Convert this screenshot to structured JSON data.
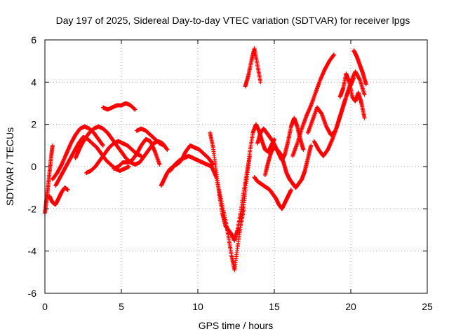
{
  "chart_data": {
    "type": "scatter",
    "title": "Day 197 of 2025, Sidereal Day-to-day VTEC variation (SDTVAR) for receiver lpgs",
    "xlabel": "GPS time / hours",
    "ylabel": "SDTVAR / TECUs",
    "xlim": [
      0,
      25
    ],
    "ylim": [
      -6,
      6
    ],
    "xticks": [
      "0",
      "5",
      "10",
      "15",
      "20",
      "25"
    ],
    "yticks": [
      "-6",
      "-4",
      "-2",
      "0",
      "2",
      "4",
      "6"
    ],
    "grid": true,
    "marker": "plus",
    "color": "#ff0000",
    "series": [
      {
        "x": [
          0.0,
          0.1,
          0.2,
          0.3,
          0.4,
          0.5
        ],
        "y": [
          -2.2,
          -1.6,
          -1.0,
          -0.3,
          0.4,
          1.0
        ]
      },
      {
        "x": [
          0.3,
          0.5,
          0.7,
          0.9,
          1.1,
          1.3,
          1.5
        ],
        "y": [
          -1.4,
          -1.7,
          -1.8,
          -1.5,
          -1.2,
          -1.0,
          -1.1
        ]
      },
      {
        "x": [
          0.5,
          0.8,
          1.1,
          1.4,
          1.7,
          2.0,
          2.3,
          2.6,
          2.9,
          3.2,
          3.5,
          3.8
        ],
        "y": [
          -0.6,
          -0.3,
          0.1,
          0.6,
          1.1,
          1.5,
          1.8,
          1.9,
          1.8,
          1.6,
          1.3,
          1.0
        ]
      },
      {
        "x": [
          0.7,
          1.0,
          1.3,
          1.6,
          1.9,
          2.2,
          2.5,
          2.8,
          3.1,
          3.4,
          3.7,
          4.0,
          4.3,
          4.6,
          4.9,
          5.2,
          5.5
        ],
        "y": [
          -0.9,
          -0.5,
          -0.1,
          0.3,
          0.7,
          1.1,
          1.4,
          1.3,
          1.1,
          0.9,
          0.6,
          0.3,
          0.1,
          -0.1,
          -0.2,
          -0.1,
          0.0
        ]
      },
      {
        "x": [
          2.0,
          2.3,
          2.6,
          2.9,
          3.2,
          3.5,
          3.8,
          4.1,
          4.4,
          4.7,
          5.0,
          5.3,
          5.6,
          5.9,
          6.2,
          6.5,
          6.8,
          7.1,
          7.4,
          7.7,
          8.0
        ],
        "y": [
          0.4,
          0.9,
          1.3,
          1.6,
          1.8,
          1.9,
          1.8,
          1.6,
          1.3,
          1.0,
          0.7,
          0.4,
          0.2,
          0.1,
          0.2,
          0.5,
          0.8,
          1.1,
          1.2,
          1.1,
          0.8
        ]
      },
      {
        "x": [
          2.7,
          3.0,
          3.3,
          3.6,
          3.9,
          4.2,
          4.5,
          4.8,
          5.1,
          5.4,
          5.7,
          6.0,
          6.3
        ],
        "y": [
          -0.3,
          -0.2,
          0.0,
          0.3,
          0.6,
          0.9,
          1.1,
          1.2,
          1.1,
          1.0,
          0.8,
          0.6,
          0.5
        ]
      },
      {
        "x": [
          3.8,
          4.1,
          4.4,
          4.7,
          5.0,
          5.3,
          5.6,
          5.9
        ],
        "y": [
          2.8,
          2.7,
          2.8,
          2.9,
          2.9,
          3.0,
          2.9,
          2.7
        ]
      },
      {
        "x": [
          4.5,
          4.8,
          5.1,
          5.4,
          5.7,
          6.0,
          6.3,
          6.6,
          6.9,
          7.2,
          7.5
        ],
        "y": [
          -0.1,
          0.0,
          0.2,
          0.2,
          0.3,
          0.6,
          1.0,
          1.3,
          1.2,
          0.7,
          0.1
        ]
      },
      {
        "x": [
          6.0,
          6.3,
          6.6,
          6.9,
          7.2,
          7.5,
          7.8
        ],
        "y": [
          1.7,
          1.8,
          1.7,
          1.5,
          1.3,
          1.1,
          1.0
        ]
      },
      {
        "x": [
          7.6,
          7.8,
          8.0,
          8.2,
          8.4,
          8.6,
          8.8,
          9.0,
          9.2,
          9.5,
          9.8,
          10.1,
          10.4,
          10.7,
          11.0
        ],
        "y": [
          -0.9,
          -0.6,
          -0.3,
          -0.1,
          0.0,
          0.1,
          0.2,
          0.4,
          0.7,
          1.0,
          0.9,
          0.8,
          0.6,
          0.4,
          0.1
        ]
      },
      {
        "x": [
          8.2,
          8.5,
          8.8,
          9.1,
          9.4,
          9.7,
          10.0,
          10.3,
          10.6,
          10.9,
          11.2,
          11.5,
          11.8,
          12.0,
          12.2,
          12.4,
          12.6,
          12.8,
          13.0
        ],
        "y": [
          -0.2,
          0.1,
          0.3,
          0.4,
          0.5,
          0.4,
          0.3,
          0.2,
          0.1,
          0.0,
          -0.5,
          -1.5,
          -2.5,
          -3.3,
          -4.2,
          -4.9,
          -3.8,
          -2.8,
          -2.0
        ]
      },
      {
        "x": [
          10.8,
          11.0,
          11.2,
          11.4,
          11.6,
          11.8,
          12.0,
          12.2,
          12.4,
          12.6,
          12.8,
          13.0,
          13.2,
          13.4
        ],
        "y": [
          1.6,
          0.9,
          -0.2,
          -1.3,
          -2.2,
          -2.8,
          -3.0,
          -3.2,
          -3.5,
          -3.0,
          -2.2,
          -1.2,
          -0.3,
          0.5
        ]
      },
      {
        "x": [
          12.8,
          13.0,
          13.2,
          13.4,
          13.6,
          13.8,
          14.0,
          14.2,
          14.4,
          14.6,
          14.8,
          15.0
        ],
        "y": [
          -2.6,
          -1.8,
          -0.6,
          0.7,
          1.6,
          2.0,
          1.7,
          1.2,
          0.8,
          0.7,
          1.0,
          1.3
        ]
      },
      {
        "x": [
          13.1,
          13.3,
          13.5,
          13.7,
          13.9,
          14.1
        ],
        "y": [
          3.8,
          4.3,
          5.0,
          5.6,
          4.8,
          4.0
        ]
      },
      {
        "x": [
          13.9,
          14.1,
          14.3,
          14.5,
          14.7,
          14.9,
          15.1,
          15.3,
          15.5,
          15.7,
          15.9,
          16.1,
          16.3,
          16.5,
          16.7,
          16.9
        ],
        "y": [
          1.1,
          1.6,
          1.8,
          1.6,
          1.4,
          1.2,
          0.9,
          0.6,
          0.3,
          0.6,
          1.2,
          1.9,
          2.3,
          1.9,
          1.3,
          0.8
        ]
      },
      {
        "x": [
          13.7,
          13.9,
          14.1,
          14.3,
          14.5,
          14.7,
          14.9,
          15.1,
          15.3,
          15.5,
          15.7,
          15.9,
          16.1
        ],
        "y": [
          -0.5,
          -0.7,
          -0.8,
          -0.9,
          -1.0,
          -1.1,
          -1.3,
          -1.5,
          -1.8,
          -2.0,
          -1.7,
          -1.4,
          -1.1
        ]
      },
      {
        "x": [
          14.4,
          14.6,
          14.8,
          15.0,
          15.2,
          15.4,
          15.6,
          15.8,
          16.0,
          16.2,
          16.4,
          16.6,
          16.8,
          17.0,
          17.2,
          17.4
        ],
        "y": [
          -0.4,
          0.2,
          0.7,
          0.9,
          0.8,
          0.6,
          0.2,
          -0.3,
          -0.6,
          -0.8,
          -1.0,
          -0.8,
          -0.6,
          -0.2,
          0.4,
          1.0
        ]
      },
      {
        "x": [
          16.2,
          16.5,
          16.8,
          17.1,
          17.4,
          17.7,
          18.0,
          18.3,
          18.6,
          18.9
        ],
        "y": [
          0.5,
          1.1,
          1.8,
          2.4,
          2.9,
          3.5,
          4.1,
          4.6,
          5.0,
          5.3
        ]
      },
      {
        "x": [
          17.2,
          17.5,
          17.8,
          18.1,
          18.4,
          18.7,
          19.0,
          19.3,
          19.6,
          19.9,
          20.2
        ],
        "y": [
          1.6,
          2.2,
          2.8,
          2.5,
          1.9,
          1.5,
          1.7,
          2.4,
          3.1,
          3.7,
          4.2
        ]
      },
      {
        "x": [
          17.6,
          17.9,
          18.2,
          18.5,
          18.8,
          19.1,
          19.4,
          19.7,
          20.0,
          20.3,
          20.6,
          20.9
        ],
        "y": [
          1.2,
          0.8,
          0.5,
          0.8,
          1.3,
          1.9,
          2.6,
          3.3,
          4.0,
          4.5,
          4.1,
          3.4
        ]
      },
      {
        "x": [
          19.3,
          19.5,
          19.7,
          19.9,
          20.1,
          20.3,
          20.5,
          20.7,
          20.9
        ],
        "y": [
          3.3,
          3.7,
          4.4,
          4.0,
          3.3,
          3.1,
          3.5,
          3.0,
          2.3
        ]
      },
      {
        "x": [
          20.2,
          20.4,
          20.6,
          20.8,
          21.0
        ],
        "y": [
          5.5,
          5.2,
          4.8,
          4.4,
          3.9
        ]
      }
    ]
  }
}
